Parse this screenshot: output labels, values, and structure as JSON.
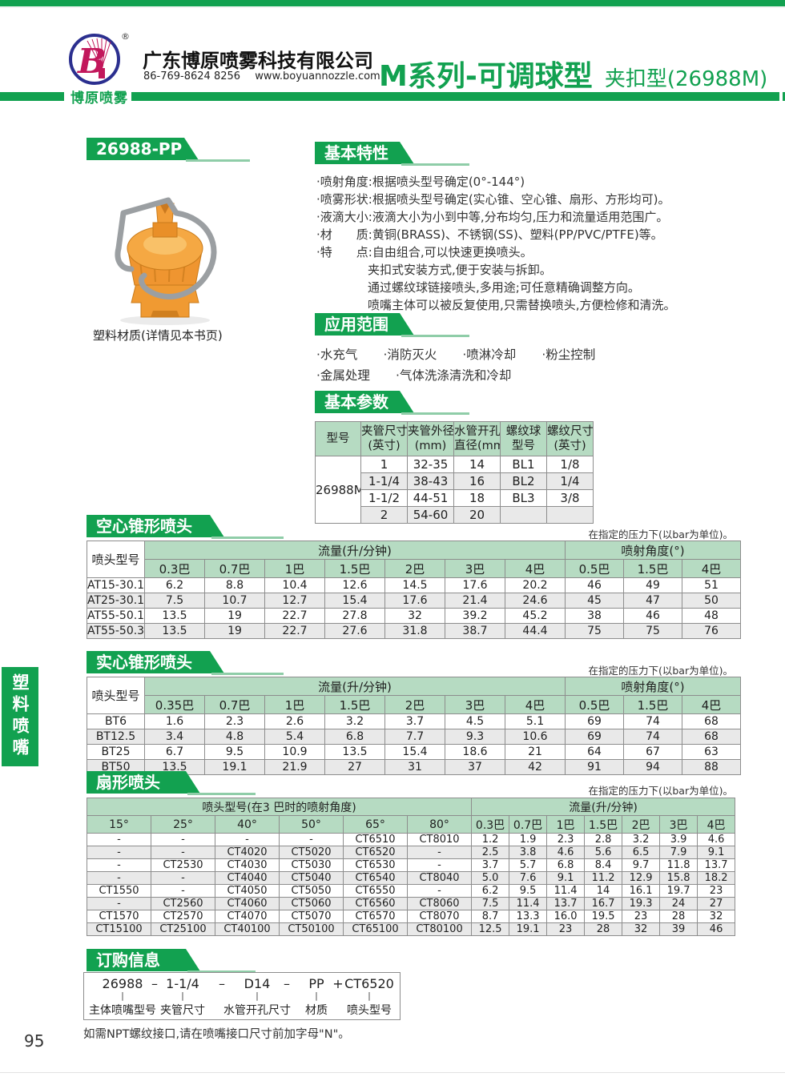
{
  "colors": {
    "green": "#12A150",
    "light_green": "#B6DBC2",
    "underline_green": "#8FCDA8",
    "row_alt": "#E9E9E9",
    "border": "#8D8D8D",
    "orange": "#F09A32",
    "logo_blue": "#2B2F8F",
    "logo_crimson": "#C2175B"
  },
  "header": {
    "logo_letter": "B",
    "registered": "®",
    "logo_caption": "博原喷雾",
    "company_name": "广东博原喷雾科技有限公司",
    "phone": "86-769-8624 8256",
    "website": "www.boyuannozzle.com",
    "series_title": "M系列-可调球型",
    "series_subtitle": "夹扣型(26988M)"
  },
  "page": {
    "number": "95",
    "side_tab": "塑料喷嘴"
  },
  "product": {
    "badge": "26988-PP",
    "caption": "塑料材质(详情见本书页)"
  },
  "features": {
    "title": "基本特性",
    "items": [
      {
        "text": "·喷射角度:根据喷头型号确定(0°-144°)",
        "indent": false
      },
      {
        "text": "·喷雾形状:根据喷头型号确定(实心锥、空心锥、扇形、方形均可)。",
        "indent": false
      },
      {
        "text": "·液滴大小:液滴大小为小到中等,分布均匀,压力和流量适用范围广。",
        "indent": false
      },
      {
        "text": "·材　　质:黄铜(BRASS)、不锈钢(SS)、塑料(PP/PVC/PTFE)等。",
        "indent": false
      },
      {
        "text": "·特　　点:自由组合,可以快速更换喷头。",
        "indent": false
      },
      {
        "text": "夹扣式安装方式,便于安装与拆卸。",
        "indent": true
      },
      {
        "text": "通过螺纹球链接喷头,多用途;可任意精确调整方向。",
        "indent": true
      },
      {
        "text": "喷嘴主体可以被反复使用,只需替换喷头,方便检修和清洗。",
        "indent": true
      }
    ]
  },
  "applications": {
    "title": "应用范围",
    "rows": [
      [
        "·水充气",
        "·消防灭火",
        "·喷淋冷却",
        "·粉尘控制"
      ],
      [
        "·金属处理",
        "·气体洗涤清洗和冷却"
      ]
    ]
  },
  "basic_params": {
    "title": "基本参数",
    "headers": [
      [
        "型号"
      ],
      [
        "夹管尺寸",
        "(英寸)"
      ],
      [
        "夹管外径",
        "(mm)"
      ],
      [
        "水管开孔",
        "直径(mm)"
      ],
      [
        "螺纹球",
        "型号"
      ],
      [
        "螺纹尺寸",
        "(英寸)"
      ]
    ],
    "model": "26988M",
    "rows": [
      [
        "1",
        "32-35",
        "14",
        "BL1",
        "1/8"
      ],
      [
        "1-1/4",
        "38-43",
        "16",
        "BL2",
        "1/4"
      ],
      [
        "1-1/2",
        "44-51",
        "18",
        "BL3",
        "3/8"
      ],
      [
        "2",
        "54-60",
        "20",
        "",
        ""
      ]
    ]
  },
  "hollow_cone": {
    "title": "空心锥形喷头",
    "note": "在指定的压力下(以bar为单位)。",
    "col_label": "喷头型号",
    "flow_header": "流量(升/分钟)",
    "angle_header": "喷射角度(°)",
    "flow_cols": [
      "0.3巴",
      "0.7巴",
      "1巴",
      "1.5巴",
      "2巴",
      "3巴",
      "4巴"
    ],
    "angle_cols": [
      "0.5巴",
      "1.5巴",
      "4巴"
    ],
    "rows": [
      {
        "model": "AT15-30.1",
        "flow": [
          "6.2",
          "8.8",
          "10.4",
          "12.6",
          "14.5",
          "17.6",
          "20.2"
        ],
        "angle": [
          "46",
          "49",
          "51"
        ]
      },
      {
        "model": "AT25-30.1",
        "flow": [
          "7.5",
          "10.7",
          "12.7",
          "15.4",
          "17.6",
          "21.4",
          "24.6"
        ],
        "angle": [
          "45",
          "47",
          "50"
        ]
      },
      {
        "model": "AT55-50.1",
        "flow": [
          "13.5",
          "19",
          "22.7",
          "27.8",
          "32",
          "39.2",
          "45.2"
        ],
        "angle": [
          "38",
          "46",
          "48"
        ]
      },
      {
        "model": "AT55-50.3",
        "flow": [
          "13.5",
          "19",
          "22.7",
          "27.6",
          "31.8",
          "38.7",
          "44.4"
        ],
        "angle": [
          "75",
          "75",
          "76"
        ]
      }
    ]
  },
  "solid_cone": {
    "title": "实心锥形喷头",
    "note": "在指定的压力下(以bar为单位)。",
    "col_label": "喷头型号",
    "flow_header": "流量(升/分钟)",
    "angle_header": "喷射角度(°)",
    "flow_cols": [
      "0.35巴",
      "0.7巴",
      "1巴",
      "1.5巴",
      "2巴",
      "3巴",
      "4巴"
    ],
    "angle_cols": [
      "0.5巴",
      "1.5巴",
      "4巴"
    ],
    "rows": [
      {
        "model": "BT6",
        "flow": [
          "1.6",
          "2.3",
          "2.6",
          "3.2",
          "3.7",
          "4.5",
          "5.1"
        ],
        "angle": [
          "69",
          "74",
          "68"
        ]
      },
      {
        "model": "BT12.5",
        "flow": [
          "3.4",
          "4.8",
          "5.4",
          "6.8",
          "7.7",
          "9.3",
          "10.6"
        ],
        "angle": [
          "69",
          "74",
          "68"
        ]
      },
      {
        "model": "BT25",
        "flow": [
          "6.7",
          "9.5",
          "10.9",
          "13.5",
          "15.4",
          "18.6",
          "21"
        ],
        "angle": [
          "64",
          "67",
          "63"
        ]
      },
      {
        "model": "BT50",
        "flow": [
          "13.5",
          "19.1",
          "21.9",
          "27",
          "31",
          "37",
          "42"
        ],
        "angle": [
          "91",
          "94",
          "88"
        ]
      }
    ]
  },
  "fan": {
    "title": "扇形喷头",
    "note": "在指定的压力下(以bar为单位)。",
    "model_header": "喷头型号(在3 巴时的喷射角度)",
    "flow_header": "流量(升/分钟)",
    "angle_cols": [
      "15°",
      "25°",
      "40°",
      "50°",
      "65°",
      "80°"
    ],
    "flow_cols": [
      "0.3巴",
      "0.7巴",
      "1巴",
      "1.5巴",
      "2巴",
      "3巴",
      "4巴"
    ],
    "rows": [
      {
        "models": [
          "-",
          "-",
          "-",
          "-",
          "CT6510",
          "CT8010"
        ],
        "flow": [
          "1.2",
          "1.9",
          "2.3",
          "2.8",
          "3.2",
          "3.9",
          "4.6"
        ]
      },
      {
        "models": [
          "-",
          "-",
          "CT4020",
          "CT5020",
          "CT6520",
          "-"
        ],
        "flow": [
          "2.5",
          "3.8",
          "4.6",
          "5.6",
          "6.5",
          "7.9",
          "9.1"
        ]
      },
      {
        "models": [
          "-",
          "CT2530",
          "CT4030",
          "CT5030",
          "CT6530",
          "-"
        ],
        "flow": [
          "3.7",
          "5.7",
          "6.8",
          "8.4",
          "9.7",
          "11.8",
          "13.7"
        ]
      },
      {
        "models": [
          "-",
          "-",
          "CT4040",
          "CT5040",
          "CT6540",
          "CT8040"
        ],
        "flow": [
          "5.0",
          "7.6",
          "9.1",
          "11.2",
          "12.9",
          "15.8",
          "18.2"
        ]
      },
      {
        "models": [
          "CT1550",
          "-",
          "CT4050",
          "CT5050",
          "CT6550",
          "-"
        ],
        "flow": [
          "6.2",
          "9.5",
          "11.4",
          "14",
          "16.1",
          "19.7",
          "23"
        ]
      },
      {
        "models": [
          "-",
          "CT2560",
          "CT4060",
          "CT5060",
          "CT6560",
          "CT8060"
        ],
        "flow": [
          "7.5",
          "11.4",
          "13.7",
          "16.7",
          "19.3",
          "24",
          "27"
        ]
      },
      {
        "models": [
          "CT1570",
          "CT2570",
          "CT4070",
          "CT5070",
          "CT6570",
          "CT8070"
        ],
        "flow": [
          "8.7",
          "13.3",
          "16.0",
          "19.5",
          "23",
          "28",
          "32"
        ]
      },
      {
        "models": [
          "CT15100",
          "CT25100",
          "CT40100",
          "CT50100",
          "CT65100",
          "CT80100"
        ],
        "flow": [
          "12.5",
          "19.1",
          "23",
          "28",
          "32",
          "39",
          "46"
        ]
      }
    ]
  },
  "ordering": {
    "title": "订购信息",
    "parts": [
      {
        "text": "26988",
        "label": "主体喷嘴型号"
      },
      {
        "text": "–"
      },
      {
        "text": "1-1/4",
        "label": "夹管尺寸"
      },
      {
        "text": "–"
      },
      {
        "text": "D14",
        "label": "水管开孔尺寸"
      },
      {
        "text": "–"
      },
      {
        "text": "PP",
        "label": "材质"
      },
      {
        "text": "+"
      },
      {
        "text": "CT6520",
        "label": "喷头型号"
      }
    ],
    "note": "如需NPT螺纹接口,请在喷嘴接口尺寸前加字母\"N\"。"
  }
}
